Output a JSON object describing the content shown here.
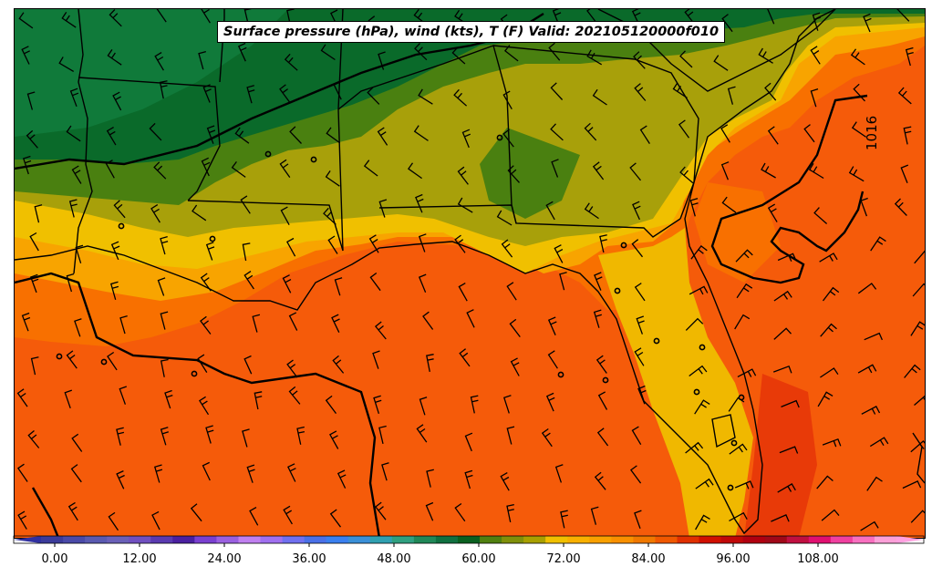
{
  "title": "Surface pressure (hPa), wind (kts), T (F) Valid: 202105120000f010",
  "contour_label": "1016",
  "colorbar": {
    "tick_labels": [
      "0.00",
      "12.00",
      "24.00",
      "36.00",
      "48.00",
      "60.00",
      "72.00",
      "84.00",
      "96.00",
      "108.00"
    ],
    "colors": [
      "#3b3b9a",
      "#4a4aa8",
      "#5a5ab0",
      "#6a60b8",
      "#7050c0",
      "#5a3ab0",
      "#4a20a0",
      "#7a40d0",
      "#9a60e0",
      "#c080f0",
      "#a070f0",
      "#7070f0",
      "#4a70e8",
      "#3a80f0",
      "#3a90d8",
      "#30a0b0",
      "#30a080",
      "#208858",
      "#107040",
      "#0a6020",
      "#508010",
      "#80900a",
      "#a8a000",
      "#f0c000",
      "#f8b000",
      "#f8a000",
      "#f89000",
      "#f07800",
      "#f05800",
      "#e03000",
      "#d01000",
      "#c00808",
      "#b00010",
      "#a00818",
      "#c01040",
      "#e01070",
      "#f040a0",
      "#f870c0",
      "#fca0d8"
    ],
    "under_color": "#3030a0",
    "over_color": "#ffa0e0"
  },
  "legend_colors": {
    "temp_dark_green": "#0a6a2a",
    "temp_green": "#4a8010",
    "temp_olive": "#a8a00a",
    "temp_yellow": "#f0c000",
    "temp_orange": "#f87000",
    "temp_red_orange": "#f55b0a",
    "temp_red": "#e83a08",
    "isobar": "#000000",
    "boundary": "#000000"
  }
}
